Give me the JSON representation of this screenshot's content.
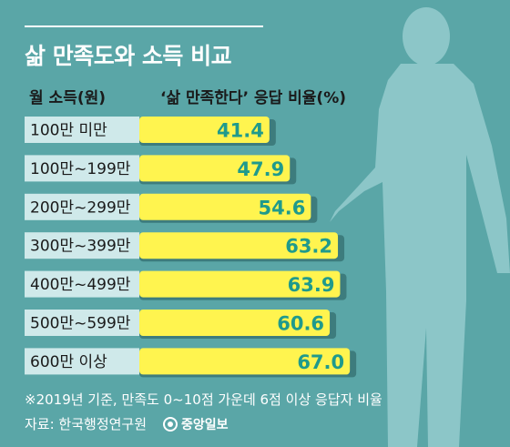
{
  "header": {
    "title": "삶 만족도와 소득 비교",
    "income_col_label": "월 소득(원)",
    "ratio_col_label": "‘삶 만족한다’ 응답 비율(%)"
  },
  "chart_data": {
    "type": "bar",
    "orientation": "horizontal",
    "title": "삶 만족도와 소득 비교",
    "xlabel": "월 소득(원)",
    "ylabel": "‘삶 만족한다’ 응답 비율(%)",
    "categories": [
      "100만 미만",
      "100만~199만",
      "200만~299만",
      "300만~399만",
      "400만~499만",
      "500만~599만",
      "600만 이상"
    ],
    "values": [
      41.4,
      47.9,
      54.6,
      63.2,
      63.9,
      60.6,
      67.0
    ],
    "value_labels": [
      "41.4",
      "47.9",
      "54.6",
      "63.2",
      "63.9",
      "60.6",
      "67.0"
    ],
    "grid": false,
    "legend": "none"
  },
  "footer": {
    "note": "※2019년 기준, 만족도 0~10점 가운데 6점 이상 응답자 비율",
    "source": "자료: 한국행정연구원",
    "brand": "중앙일보"
  },
  "colors": {
    "background": "#5aa6a7",
    "bar": "#fff44f",
    "bar_shadow": "#3d7c7d",
    "category_box": "#cfe9ea",
    "value_text": "#1f9a8c",
    "silhouette": "#8cc6c8"
  }
}
